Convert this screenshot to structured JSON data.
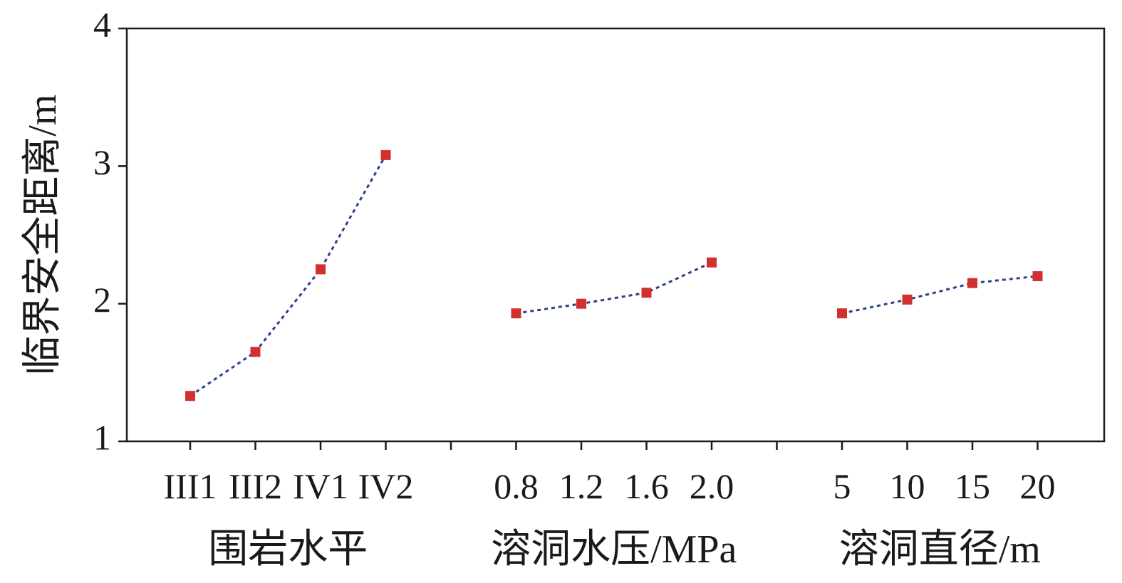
{
  "chart_data": {
    "type": "line",
    "ylabel": "临界安全距离/m",
    "ylim": [
      1,
      4
    ],
    "yticks": [
      "1",
      "2",
      "3",
      "4"
    ],
    "line_style": "dotted",
    "colors": {
      "line": "#2b3f8c",
      "marker": "#d32f2f",
      "axis": "#1a1a1a"
    },
    "groups": [
      {
        "xlabel": "围岩水平",
        "categories": [
          "III1",
          "III2",
          "IV1",
          "IV2"
        ],
        "values": [
          1.33,
          1.65,
          2.25,
          3.08
        ]
      },
      {
        "xlabel": "溶洞水压/MPa",
        "categories": [
          "0.8",
          "1.2",
          "1.6",
          "2.0"
        ],
        "values": [
          1.93,
          2.0,
          2.08,
          2.3
        ]
      },
      {
        "xlabel": "溶洞直径/m",
        "categories": [
          "5",
          "10",
          "15",
          "20"
        ],
        "values": [
          1.93,
          2.03,
          2.15,
          2.2
        ]
      }
    ]
  }
}
